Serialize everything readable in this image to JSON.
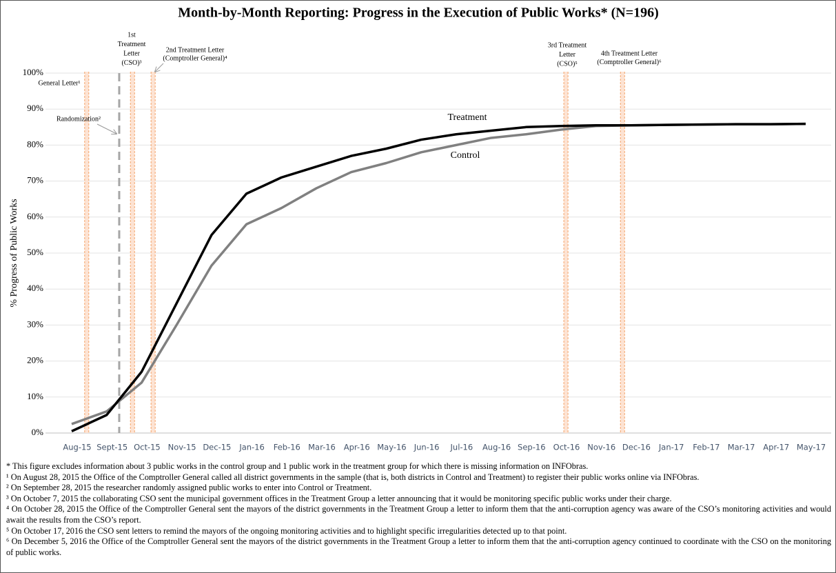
{
  "chart_data": {
    "type": "line",
    "title": "Month-by-Month Reporting: Progress in the Execution of Public Works* (N=196)",
    "y_label": "% Progress of Public Works",
    "categories": [
      "Aug-15",
      "Sept-15",
      "Oct-15",
      "Nov-15",
      "Dec-15",
      "Jan-16",
      "Feb-16",
      "Mar-16",
      "Apr-16",
      "May-16",
      "Jun-16",
      "Jul-16",
      "Aug-16",
      "Sep-16",
      "Oct-16",
      "Nov-16",
      "Dec-16",
      "Jan-17",
      "Feb-17",
      "Mar-17",
      "Apr-17",
      "May-17"
    ],
    "series": [
      {
        "name": "Treatment",
        "color": "#000000",
        "values": [
          0.5,
          5,
          17,
          36,
          55,
          66.5,
          71,
          74,
          77,
          79,
          81.5,
          83,
          84,
          85,
          85.3,
          85.5,
          85.5,
          85.6,
          85.7,
          85.8,
          85.8,
          85.9
        ]
      },
      {
        "name": "Control",
        "color": "#808080",
        "values": [
          2.5,
          6,
          14,
          30,
          46.5,
          58,
          62.5,
          68,
          72.5,
          75,
          78,
          80,
          82,
          83,
          84.3,
          85.3,
          85.5,
          85.6,
          85.7,
          85.8,
          85.8,
          85.9
        ]
      }
    ],
    "ylim": [
      0,
      100
    ],
    "yticks": [
      {
        "value": 0,
        "label": "0%"
      },
      {
        "value": 10,
        "label": "10%"
      },
      {
        "value": 20,
        "label": "20%"
      },
      {
        "value": 30,
        "label": "30%"
      },
      {
        "value": 40,
        "label": "40%"
      },
      {
        "value": 50,
        "label": "50%"
      },
      {
        "value": 60,
        "label": "60%"
      },
      {
        "value": 70,
        "label": "70%"
      },
      {
        "value": 80,
        "label": "80%"
      },
      {
        "value": 90,
        "label": "90%"
      },
      {
        "value": 100,
        "label": "100%"
      }
    ],
    "grid": true,
    "annotations": [
      {
        "lines": [
          "General Letter¹"
        ]
      },
      {
        "lines": [
          "Randomization²"
        ]
      },
      {
        "lines": [
          "1st",
          "Treatment",
          "Letter",
          "(CSO)³"
        ]
      },
      {
        "lines": [
          "2nd Treatment Letter",
          "(Comptroller General)⁴"
        ]
      },
      {
        "lines": [
          "3rd Treatment",
          "Letter",
          "(CSO)⁵"
        ]
      },
      {
        "lines": [
          "4th Treatment Letter",
          "(Comptroller General)⁶"
        ]
      }
    ],
    "footnotes": [
      "* This figure excludes information about 3 public works in the control group and 1 public work in the treatment group for which there is missing information on INFObras.",
      "¹ On August 28, 2015 the Office of the Comptroller General called all district governments in the sample (that is, both districts in Control and Treatment) to register their public works online via INFObras.",
      "² On September 28, 2015 the researcher randomly assigned public works to enter into Control or Treatment.",
      "³ On October 7, 2015 the collaborating CSO sent the municipal government offices in the Treatment Group a letter announcing that it would be monitoring specific public works under their charge.",
      "⁴ On October 28, 2015 the Office of the Comptroller General sent the mayors of the district governments in the Treatment Group a letter to inform them that the anti-corruption agency was aware of the CSO’s monitoring activities and would await the results from the CSO’s report.",
      "⁵ On October 17, 2016 the CSO sent letters to remind the mayors of the ongoing monitoring activities and to highlight specific irregularities detected up to that point.",
      "⁶ On December 5, 2016 the Office of the Comptroller General sent the mayors of the district governments in the Treatment Group a letter to inform them that the anti-corruption agency continued to coordinate with the CSO on the monitoring of public works."
    ]
  }
}
